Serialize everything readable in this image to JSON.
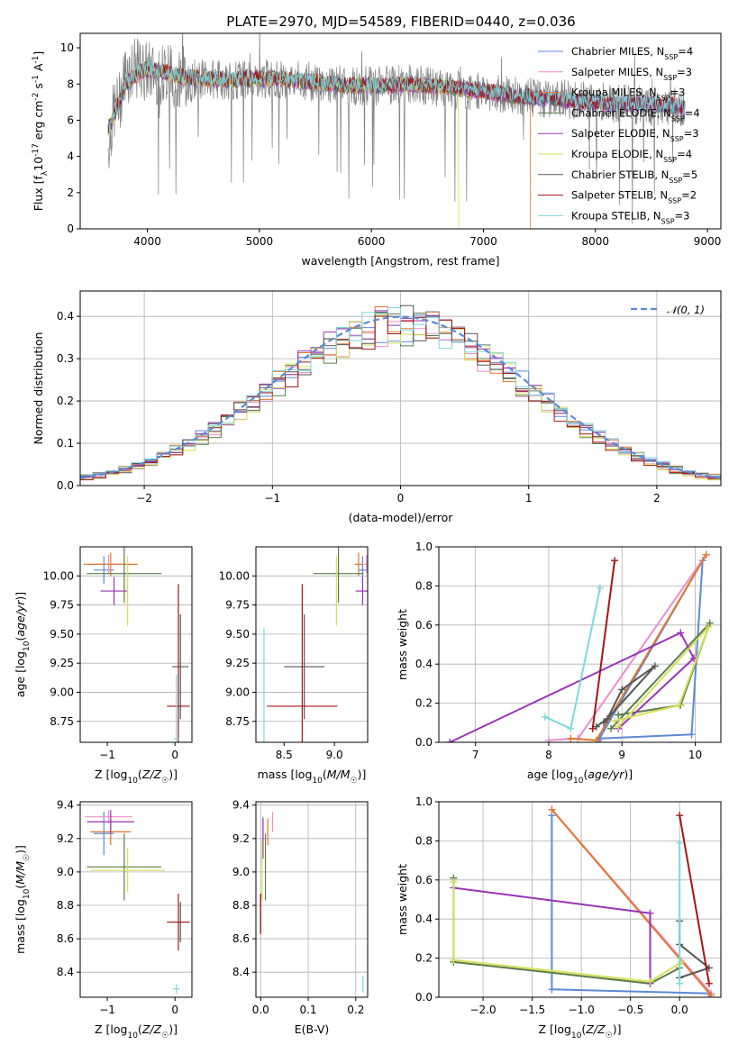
{
  "figure_title": "PLATE=2970, MJD=54589, FIBERID=0440, z=0.036",
  "models": [
    {
      "name": "Chabrier MILES",
      "nssp": "4",
      "color": "#5b8ad6"
    },
    {
      "name": "Salpeter MILES",
      "nssp": "3",
      "color": "#e98fc8"
    },
    {
      "name": "Kroupa MILES",
      "nssp": "3",
      "color": "#e0782e"
    },
    {
      "name": "Chabrier ELODIE",
      "nssp": "4",
      "color": "#5a7d4a"
    },
    {
      "name": "Salpeter ELODIE",
      "nssp": "3",
      "color": "#9a33b8"
    },
    {
      "name": "Kroupa ELODIE",
      "nssp": "4",
      "color": "#d6e05a"
    },
    {
      "name": "Chabrier STELIB",
      "nssp": "5",
      "color": "#555555"
    },
    {
      "name": "Salpeter STELIB",
      "nssp": "2",
      "color": "#a51515"
    },
    {
      "name": "Kroupa STELIB",
      "nssp": "3",
      "color": "#7dd7db"
    }
  ],
  "chart_data": [
    {
      "id": "spectrum",
      "type": "line",
      "xlabel": "wavelength [Angstrom, rest frame]",
      "ylabel_main": "Flux [f",
      "ylabel_sub1": "λ",
      "ylabel_mid": "10",
      "ylabel_sup1": "-17",
      "ylabel_rest": " erg cm",
      "ylabel_sup2": "-2",
      "ylabel_s": " s",
      "ylabel_sup3": "-1",
      "ylabel_a": " A",
      "ylabel_sup4": "-1",
      "ylabel_end": "]",
      "xlim": [
        3400,
        9120
      ],
      "ylim": [
        0,
        10.8
      ],
      "xticks": [
        "4000",
        "5000",
        "6000",
        "7000",
        "8000",
        "9000"
      ],
      "xtick_values": [
        4000,
        5000,
        6000,
        7000,
        8000,
        9000
      ],
      "yticks": [
        "0",
        "2",
        "4",
        "6",
        "8",
        "10"
      ],
      "ytick_values": [
        0,
        2,
        4,
        6,
        8,
        10
      ],
      "legend_position": "upper-right",
      "observed_series": {
        "name": "",
        "x": [
          3650,
          3700,
          3750,
          3800,
          3900,
          4000,
          4100,
          4200,
          4300,
          4400,
          4500,
          4700,
          5000,
          5200,
          5500,
          5800,
          6100,
          6400,
          6700,
          7000,
          7300,
          7600,
          7900,
          8200,
          8500,
          8800
        ],
        "y": [
          4.5,
          6.5,
          7.0,
          8.6,
          8.8,
          8.7,
          8.6,
          8.5,
          8.4,
          8.3,
          8.3,
          8.2,
          8.3,
          8.3,
          8.1,
          7.9,
          7.9,
          8.0,
          7.7,
          7.6,
          7.3,
          7.2,
          7.1,
          6.9,
          6.8,
          6.7
        ]
      },
      "model_x": [
        3650,
        3700,
        3750,
        3800,
        3900,
        4000,
        4100,
        4200,
        4300,
        4400,
        4500,
        4700,
        5000,
        5200,
        5500,
        5800,
        6100,
        6400,
        6700,
        7000,
        7300,
        7600,
        7900,
        8200,
        8500,
        8800
      ],
      "model_y": [
        5.5,
        6.2,
        7.0,
        8.0,
        8.5,
        8.8,
        8.7,
        8.6,
        8.4,
        8.3,
        8.3,
        8.2,
        8.3,
        8.3,
        8.1,
        7.9,
        7.9,
        8.0,
        7.8,
        7.6,
        7.3,
        7.2,
        7.0,
        6.9,
        6.9,
        6.7
      ],
      "model_end_wavelength": [
        8800,
        8800,
        7420,
        8800,
        8800,
        6780,
        8800,
        8800,
        8800
      ]
    },
    {
      "id": "residuals",
      "type": "line",
      "xlabel": "(data-model)/error",
      "ylabel": "Normed distribution",
      "xlim": [
        -2.5,
        2.5
      ],
      "ylim": [
        0,
        0.46
      ],
      "xticks": [
        "−2",
        "−1",
        "0",
        "1",
        "2"
      ],
      "xtick_values": [
        -2,
        -1,
        0,
        1,
        2
      ],
      "yticks": [
        "0.0",
        "0.1",
        "0.2",
        "0.3",
        "0.4"
      ],
      "ytick_values": [
        0,
        0.1,
        0.2,
        0.3,
        0.4
      ],
      "grid": true,
      "legend_position": "upper-right",
      "reference_label": "𝒩(0, 1)",
      "reference_color": "#5b8ad6"
    },
    {
      "id": "age_vs_Z",
      "type": "scatter",
      "xlabel": "Z [log10(Z/Z☉)]",
      "ylabel": "age  [log10(age/yr)]",
      "xlim": [
        -1.4,
        0.25
      ],
      "ylim": [
        8.57,
        10.25
      ],
      "xticks": [
        "−1",
        "0"
      ],
      "xtick_values": [
        -1,
        0
      ],
      "yticks": [
        "8.75",
        "9.00",
        "9.25",
        "9.50",
        "9.75",
        "10.00"
      ],
      "ytick_values": [
        8.75,
        9.0,
        9.25,
        9.5,
        9.75,
        10.0
      ],
      "points": [
        {
          "x": -1.05,
          "y": 10.05,
          "xerr": 0.15,
          "yerr": 0.12,
          "c": 0
        },
        {
          "x": -0.98,
          "y": 10.1,
          "xerr": 0.2,
          "yerr": 0.08,
          "c": 1
        },
        {
          "x": -0.95,
          "y": 10.1,
          "xerr": 0.4,
          "yerr": 0.1,
          "c": 2
        },
        {
          "x": -0.75,
          "y": 10.02,
          "xerr": 0.55,
          "yerr": 0.25,
          "c": 3
        },
        {
          "x": -0.9,
          "y": 9.87,
          "xerr": 0.2,
          "yerr": 0.12,
          "c": 4
        },
        {
          "x": -0.7,
          "y": 9.87,
          "xerr": 0.0,
          "yerr": 0.3,
          "c": 5
        },
        {
          "x": 0.08,
          "y": 9.22,
          "xerr": 0.12,
          "yerr": 0.45,
          "c": 6
        },
        {
          "x": 0.05,
          "y": 8.88,
          "xerr": 0.17,
          "yerr": 1.05,
          "c": 7
        },
        {
          "x": 0.02,
          "y": 8.6,
          "xerr": 0.04,
          "yerr": 0.55,
          "c": 8
        }
      ]
    },
    {
      "id": "age_vs_mass",
      "type": "scatter",
      "xlabel": "mass [log10(M/M☉)]",
      "ylabel": "",
      "xlim": [
        8.22,
        9.33
      ],
      "ylim": [
        8.57,
        10.25
      ],
      "xticks": [
        "8.5",
        "9.0"
      ],
      "xtick_values": [
        8.5,
        9.0
      ],
      "yticks": [
        "8.75",
        "9.00",
        "9.25",
        "9.50",
        "9.75",
        "10.00"
      ],
      "ytick_values": [
        8.75,
        9.0,
        9.25,
        9.5,
        9.75,
        10.0
      ],
      "points": [
        {
          "x": 9.28,
          "y": 10.05,
          "xerr": 0.04,
          "yerr": 0.12,
          "c": 0
        },
        {
          "x": 9.32,
          "y": 10.1,
          "xerr": 0.03,
          "yerr": 0.08,
          "c": 1
        },
        {
          "x": 9.24,
          "y": 10.1,
          "xerr": 0.04,
          "yerr": 0.1,
          "c": 2
        },
        {
          "x": 9.04,
          "y": 10.02,
          "xerr": 0.25,
          "yerr": 0.25,
          "c": 3
        },
        {
          "x": 9.28,
          "y": 9.87,
          "xerr": 0.07,
          "yerr": 0.12,
          "c": 4
        },
        {
          "x": 9.02,
          "y": 9.87,
          "xerr": 0.0,
          "yerr": 0.3,
          "c": 5
        },
        {
          "x": 8.7,
          "y": 9.22,
          "xerr": 0.2,
          "yerr": 0.45,
          "c": 6
        },
        {
          "x": 8.68,
          "y": 8.88,
          "xerr": 0.35,
          "yerr": 1.05,
          "c": 7
        },
        {
          "x": 8.3,
          "y": 8.6,
          "xerr": 0.0,
          "yerr": 0.95,
          "c": 8
        }
      ]
    },
    {
      "id": "weight_vs_age",
      "type": "line",
      "xlabel": "age  [log10(age/yr)]",
      "ylabel": "mass weight",
      "xlim": [
        6.5,
        10.35
      ],
      "ylim": [
        0,
        1.0
      ],
      "xticks": [
        "7",
        "8",
        "9",
        "10"
      ],
      "xtick_values": [
        7,
        8,
        9,
        10
      ],
      "yticks": [
        "0.0",
        "0.2",
        "0.4",
        "0.6",
        "0.8",
        "1.0"
      ],
      "ytick_values": [
        0,
        0.2,
        0.4,
        0.6,
        0.8,
        1.0
      ],
      "grid": true,
      "series": [
        {
          "c": 0,
          "x": [
            8.7,
            9.95,
            10.1,
            8.68
          ],
          "y": [
            0.02,
            0.04,
            0.93,
            0.01
          ]
        },
        {
          "c": 1,
          "x": [
            8.0,
            8.4,
            10.15
          ],
          "y": [
            0.01,
            0.02,
            0.96
          ]
        },
        {
          "c": 2,
          "x": [
            8.3,
            8.65,
            10.15
          ],
          "y": [
            0.02,
            0.01,
            0.96
          ]
        },
        {
          "c": 3,
          "x": [
            8.95,
            9.8,
            10.2,
            8.85
          ],
          "y": [
            0.14,
            0.19,
            0.61,
            0.07
          ]
        },
        {
          "c": 4,
          "x": [
            6.65,
            9.8,
            9.98,
            8.95
          ],
          "y": [
            0.0,
            0.56,
            0.43,
            0.07
          ]
        },
        {
          "c": 5,
          "x": [
            8.9,
            9.78,
            10.18,
            8.95
          ],
          "y": [
            0.11,
            0.19,
            0.59,
            0.08
          ]
        },
        {
          "c": 6,
          "x": [
            8.65,
            8.8,
            9.0,
            9.45,
            8.75
          ],
          "y": [
            0.08,
            0.12,
            0.27,
            0.39,
            0.1
          ]
        },
        {
          "c": 7,
          "x": [
            8.6,
            8.9
          ],
          "y": [
            0.07,
            0.93
          ]
        },
        {
          "c": 8,
          "x": [
            7.95,
            8.3,
            8.7
          ],
          "y": [
            0.13,
            0.07,
            0.79
          ]
        }
      ]
    },
    {
      "id": "mass_vs_Z",
      "type": "scatter",
      "xlabel": "Z [log10(Z/Z☉)]",
      "ylabel": "mass [log10(M/M☉)]",
      "xlim": [
        -1.4,
        0.25
      ],
      "ylim": [
        8.25,
        9.42
      ],
      "xticks": [
        "−1",
        "0"
      ],
      "xtick_values": [
        -1,
        0
      ],
      "yticks": [
        "8.4",
        "8.6",
        "8.8",
        "9.0",
        "9.2",
        "9.4"
      ],
      "ytick_values": [
        8.4,
        8.6,
        8.8,
        9.0,
        9.2,
        9.4
      ],
      "points": [
        {
          "x": -1.05,
          "y": 9.23,
          "xerr": 0.15,
          "yerr": 0.13,
          "c": 0
        },
        {
          "x": -0.98,
          "y": 9.33,
          "xerr": 0.35,
          "yerr": 0.04,
          "c": 1
        },
        {
          "x": -0.95,
          "y": 9.24,
          "xerr": 0.3,
          "yerr": 0.08,
          "c": 2
        },
        {
          "x": -0.75,
          "y": 9.03,
          "xerr": 0.55,
          "yerr": 0.2,
          "c": 3
        },
        {
          "x": -0.95,
          "y": 9.3,
          "xerr": 0.35,
          "yerr": 0.07,
          "c": 4
        },
        {
          "x": -0.7,
          "y": 9.01,
          "xerr": 0.55,
          "yerr": 0.13,
          "c": 5
        },
        {
          "x": 0.08,
          "y": 8.7,
          "xerr": 0.12,
          "yerr": 0.12,
          "c": 6
        },
        {
          "x": 0.05,
          "y": 8.7,
          "xerr": 0.17,
          "yerr": 0.17,
          "c": 7
        },
        {
          "x": 0.02,
          "y": 8.3,
          "xerr": 0.05,
          "yerr": 0.03,
          "c": 8
        }
      ]
    },
    {
      "id": "mass_vs_ebv",
      "type": "scatter",
      "xlabel": "E(B-V)",
      "ylabel": "",
      "xlim": [
        -0.01,
        0.225
      ],
      "ylim": [
        8.25,
        9.42
      ],
      "xticks": [
        "0.0",
        "0.1",
        "0.2"
      ],
      "xtick_values": [
        0,
        0.1,
        0.2
      ],
      "yticks": [
        "8.4",
        "8.6",
        "8.8",
        "9.0",
        "9.2",
        "9.4"
      ],
      "ytick_values": [
        8.4,
        8.6,
        8.8,
        9.0,
        9.2,
        9.4
      ],
      "grid": true,
      "points": [
        {
          "x": 0.005,
          "y": 9.23,
          "xerr": 0,
          "yerr": 0.1,
          "c": 0
        },
        {
          "x": 0.025,
          "y": 9.3,
          "xerr": 0,
          "yerr": 0.06,
          "c": 1
        },
        {
          "x": 0.015,
          "y": 9.24,
          "xerr": 0,
          "yerr": 0.08,
          "c": 2
        },
        {
          "x": 0.01,
          "y": 9.03,
          "xerr": 0,
          "yerr": 0.2,
          "c": 3
        },
        {
          "x": 0.005,
          "y": 9.2,
          "xerr": 0,
          "yerr": 0.12,
          "c": 4
        },
        {
          "x": 0.003,
          "y": 9.01,
          "xerr": 0,
          "yerr": 0.18,
          "c": 5
        },
        {
          "x": 0.0,
          "y": 8.75,
          "xerr": 0,
          "yerr": 0.12,
          "c": 6
        },
        {
          "x": 0.0,
          "y": 8.75,
          "xerr": 0,
          "yerr": 0.12,
          "c": 7
        },
        {
          "x": 0.215,
          "y": 8.33,
          "xerr": 0,
          "yerr": 0.05,
          "c": 8
        }
      ]
    },
    {
      "id": "weight_vs_Z",
      "type": "line",
      "xlabel": "Z [log10(Z/Z☉)]",
      "ylabel": "mass weight",
      "xlim": [
        -2.45,
        0.42
      ],
      "ylim": [
        0,
        1.0
      ],
      "xticks": [
        "−2.0",
        "−1.5",
        "−1.0",
        "−0.5",
        "0.0"
      ],
      "xtick_values": [
        -2,
        -1.5,
        -1,
        -0.5,
        0
      ],
      "yticks": [
        "0.0",
        "0.2",
        "0.4",
        "0.6",
        "0.8",
        "1.0"
      ],
      "ytick_values": [
        0,
        0.2,
        0.4,
        0.6,
        0.8,
        1.0
      ],
      "grid": true,
      "series": [
        {
          "c": 0,
          "x": [
            -1.3,
            -1.3,
            0.3
          ],
          "y": [
            0.93,
            0.04,
            0.02
          ]
        },
        {
          "c": 1,
          "x": [
            -1.3,
            0.32
          ],
          "y": [
            0.96,
            0.02
          ]
        },
        {
          "c": 2,
          "x": [
            -1.3,
            0.32
          ],
          "y": [
            0.96,
            0.01
          ]
        },
        {
          "c": 3,
          "x": [
            -2.3,
            -2.3,
            -0.3,
            0.0
          ],
          "y": [
            0.61,
            0.18,
            0.07,
            0.15
          ]
        },
        {
          "c": 4,
          "x": [
            -2.3,
            -0.3,
            -0.3
          ],
          "y": [
            0.56,
            0.43,
            0.07
          ]
        },
        {
          "c": 5,
          "x": [
            -2.3,
            -2.3,
            -0.3,
            0.02
          ],
          "y": [
            0.59,
            0.19,
            0.08,
            0.18
          ]
        },
        {
          "c": 6,
          "x": [
            0.0,
            0.0,
            0.3,
            0.0
          ],
          "y": [
            0.39,
            0.27,
            0.15,
            0.1
          ]
        },
        {
          "c": 7,
          "x": [
            0.0,
            0.3
          ],
          "y": [
            0.93,
            0.07
          ]
        },
        {
          "c": 8,
          "x": [
            0.0,
            0.0
          ],
          "y": [
            0.79,
            0.07
          ]
        }
      ]
    }
  ],
  "hist_bins_start": -2.5,
  "hist_bin_width": 0.1,
  "hist_offsets": [
    0.003,
    -0.004,
    0.006,
    -0.005,
    0.002,
    -0.006,
    0.004,
    -0.003,
    0.005
  ]
}
